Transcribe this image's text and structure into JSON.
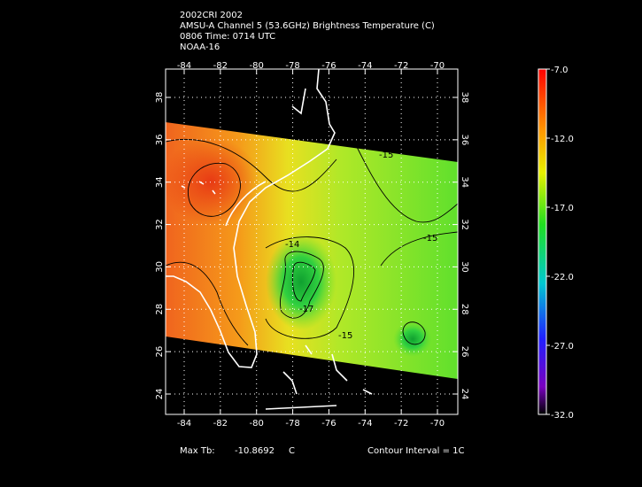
{
  "header": {
    "lines": [
      "2002CRI 2002",
      "AMSU-A Channel 5 (53.6GHz) Brightness Temperature (C)",
      "0806 Time: 0714 UTC",
      "NOAA-16"
    ]
  },
  "map": {
    "lon_ticks": [
      -84,
      -82,
      -80,
      -78,
      -76,
      -74,
      -72,
      -70
    ],
    "lat_ticks": [
      24,
      26,
      28,
      30,
      32,
      34,
      36,
      38
    ],
    "contour_labels": [
      "-14",
      "-15",
      "-15",
      "-17",
      "-15"
    ]
  },
  "colorbar": {
    "ticks": [
      {
        "value": -7,
        "label": "-7.0"
      },
      {
        "value": -12,
        "label": "-12.0"
      },
      {
        "value": -17,
        "label": "-17.0"
      },
      {
        "value": -22,
        "label": "-22.0"
      },
      {
        "value": -27,
        "label": "-27.0"
      },
      {
        "value": -32,
        "label": "-32.0"
      }
    ]
  },
  "footer": {
    "max_label": "Max Tb:",
    "max_value": "-10.8692",
    "max_unit": "C",
    "contour_interval": "Contour Interval = 1C"
  }
}
